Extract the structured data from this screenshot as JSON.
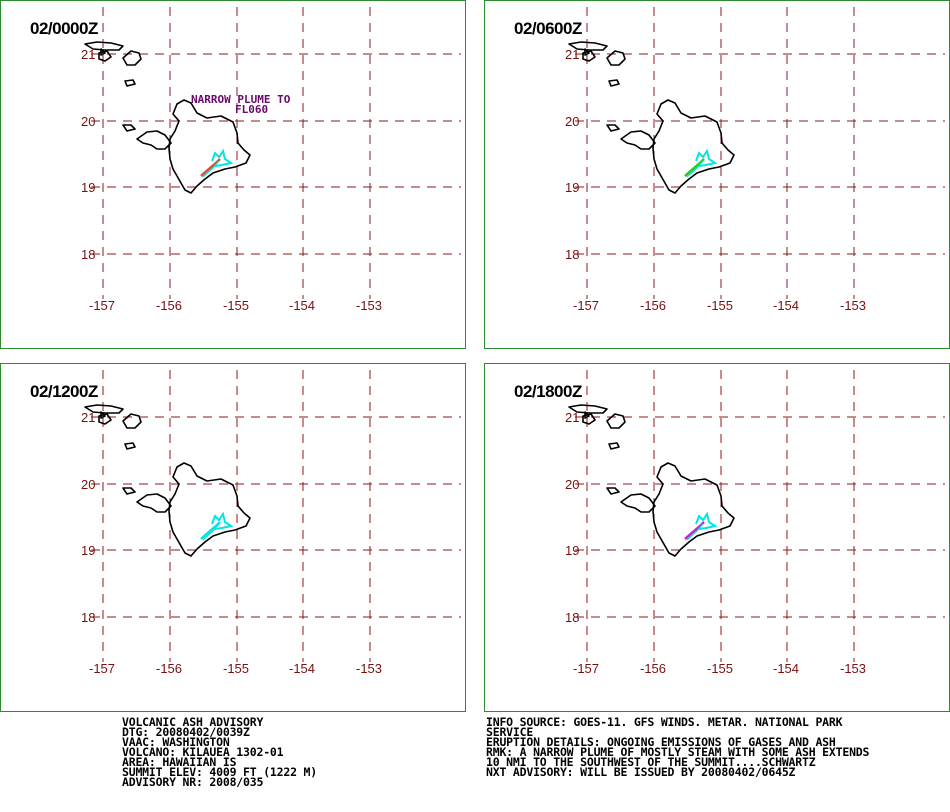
{
  "panels": [
    {
      "time": "02/0000Z",
      "plume_colors": [
        "#00e5e5",
        "#c85a3a"
      ],
      "annotation": [
        "NARROW PLUME TO",
        "FL060"
      ]
    },
    {
      "time": "02/0600Z",
      "plume_colors": [
        "#00e5e5",
        "#22cc22"
      ],
      "annotation": []
    },
    {
      "time": "02/1200Z",
      "plume_colors": [
        "#00e5e5",
        "#00e5e5"
      ],
      "annotation": []
    },
    {
      "time": "02/1800Z",
      "plume_colors": [
        "#00e5e5",
        "#cc22cc"
      ],
      "annotation": []
    }
  ],
  "lon_ticks": [
    "-157",
    "-156",
    "-155",
    "-154",
    "-153"
  ],
  "lat_ticks": [
    "21",
    "20",
    "19",
    "18"
  ],
  "colors": {
    "border": "#2e8b2e",
    "grid": "#8b1a1a",
    "tick_text": "#7a1010",
    "annotation": "#6a0a6a"
  },
  "advisory_left": [
    "VOLCANIC ASH ADVISORY",
    "DTG: 20080402/0039Z",
    "VAAC: WASHINGTON",
    "VOLCANO: KILAUEA 1302-01",
    "AREA: HAWAIIAN IS",
    "SUMMIT ELEV: 4009 FT (1222 M)",
    "ADVISORY NR: 2008/035"
  ],
  "advisory_right": [
    "INFO SOURCE: GOES-11. GFS WINDS. METAR. NATIONAL PARK",
    "SERVICE",
    "ERUPTION DETAILS: ONGOING EMISSIONS OF GASES AND ASH",
    "RMK: A NARROW PLUME OF MOSTLY STEAM WITH SOME ASH EXTENDS",
    "10 NMI TO THE SOUTHWEST OF THE SUMMIT....SCHWARTZ",
    "NXT ADVISORY: WILL BE ISSUED BY 20080402/0645Z"
  ]
}
